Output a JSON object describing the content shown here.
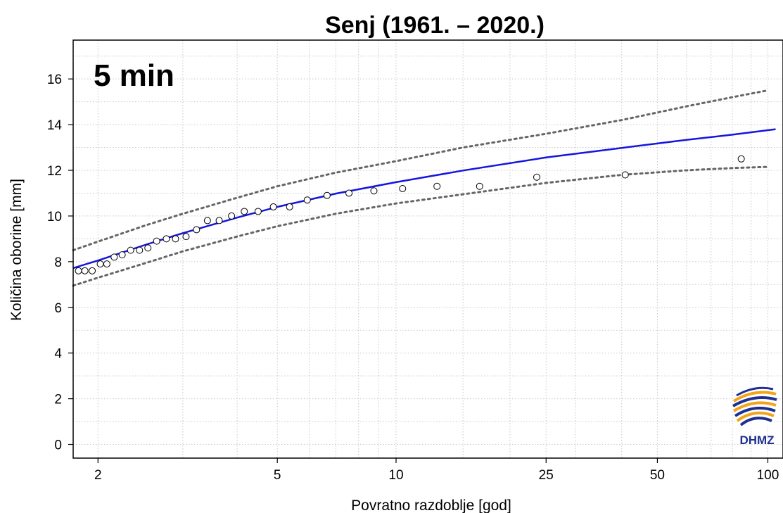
{
  "chart_data": {
    "type": "scatter",
    "title": "Senj (1961. – 2020.)",
    "annotation": "5 min",
    "xlabel": "Povratno razdoblje [god]",
    "ylabel": "Količina oborine [mm]",
    "x_scale": "gumbel",
    "x_ticks": [
      2,
      5,
      10,
      25,
      50,
      100
    ],
    "y_ticks": [
      0,
      2,
      4,
      6,
      8,
      10,
      12,
      14,
      16
    ],
    "xlim": [
      1.8,
      110
    ],
    "ylim": [
      -0.6,
      17.7
    ],
    "grid": true,
    "logo_text": "DHMZ",
    "colors": {
      "fit": "#1515e0",
      "confidence": "#666666",
      "points": "#000000",
      "logo_blue": "#1f2f8f",
      "logo_orange": "#f2a51a"
    },
    "series": [
      {
        "type": "scatter",
        "x": [
          1.84,
          1.89,
          1.95,
          2.02,
          2.08,
          2.15,
          2.23,
          2.32,
          2.42,
          2.52,
          2.63,
          2.76,
          2.89,
          3.05,
          3.22,
          3.41,
          3.63,
          3.88,
          4.16,
          4.49,
          4.89,
          5.36,
          5.93,
          6.65,
          7.56,
          8.76,
          10.4,
          12.8,
          16.6,
          23.6,
          40.9,
          84.6
        ],
        "y": [
          7.6,
          7.6,
          7.6,
          7.9,
          7.9,
          8.2,
          8.3,
          8.5,
          8.5,
          8.6,
          8.9,
          9.0,
          9.0,
          9.1,
          9.4,
          9.8,
          9.8,
          10.0,
          10.2,
          10.2,
          10.4,
          10.4,
          10.7,
          10.9,
          11.0,
          11.1,
          11.2,
          11.3,
          11.3,
          11.7,
          11.8,
          12.5
        ]
      },
      {
        "type": "line",
        "x": [
          1.8,
          2,
          2.5,
          3,
          4,
          5,
          7,
          10,
          15,
          25,
          40,
          60,
          80,
          105
        ],
        "y": [
          7.72,
          8.05,
          8.75,
          9.25,
          9.93,
          10.4,
          10.98,
          11.48,
          11.99,
          12.56,
          12.98,
          13.33,
          13.56,
          13.8
        ]
      },
      {
        "type": "line",
        "x": [
          1.8,
          2,
          2.5,
          3,
          4,
          5,
          7,
          10,
          15,
          25,
          40,
          60,
          80,
          100
        ],
        "y": [
          8.5,
          8.88,
          9.6,
          10.1,
          10.8,
          11.3,
          11.9,
          12.4,
          13.0,
          13.6,
          14.2,
          14.8,
          15.2,
          15.5
        ]
      },
      {
        "type": "line",
        "x": [
          1.8,
          2,
          2.5,
          3,
          4,
          5,
          7,
          10,
          15,
          25,
          40,
          60,
          80,
          100
        ],
        "y": [
          6.95,
          7.3,
          7.95,
          8.45,
          9.1,
          9.55,
          10.1,
          10.55,
          10.95,
          11.45,
          11.8,
          12.0,
          12.1,
          12.15
        ]
      }
    ]
  }
}
